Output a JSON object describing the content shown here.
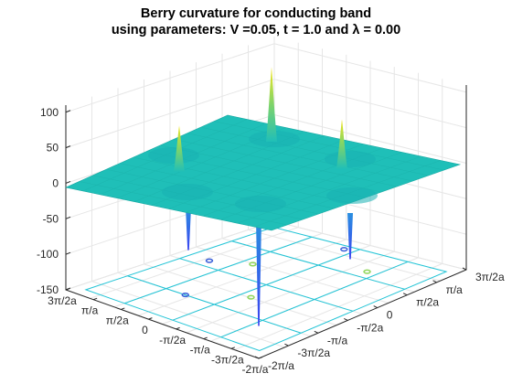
{
  "chart_data": {
    "type": "surface3d",
    "title_line1": "Berry curvature for conducting band",
    "title_line2": "using parameters: V =0.05, t = 1.0 and λ = 0.00",
    "zlim": [
      -150,
      110
    ],
    "z_ticks": [
      "100",
      "50",
      "0",
      "-50",
      "-100",
      "-150"
    ],
    "ky_ticks": [
      "3π/2a",
      "π/a",
      "π/2a",
      "0",
      "-π/2a",
      "-π/a",
      "-3π/2a",
      "-2π/a"
    ],
    "kx_ticks": [
      "3π/2a",
      "π/a",
      "π/2a",
      "0",
      "-π/2a",
      "-π/a",
      "-3π/2a",
      "-2π/a"
    ],
    "baseline_value": 0,
    "positive_peaks": [
      {
        "label": "left",
        "value": 65
      },
      {
        "label": "back",
        "value": 105
      },
      {
        "label": "right",
        "value": 70
      }
    ],
    "negative_peaks": [
      {
        "label": "front-left",
        "value": -60
      },
      {
        "label": "front",
        "value": -150
      },
      {
        "label": "front-right",
        "value": -65
      }
    ],
    "colors": {
      "plane": "#1fbfb8",
      "positive_tip": "#f5e61c",
      "negative_tip": "#3b44f0",
      "grid": "#e6e6e6",
      "contour_positive": "#8fd65a",
      "contour_negative": "#3a5fd9"
    }
  }
}
